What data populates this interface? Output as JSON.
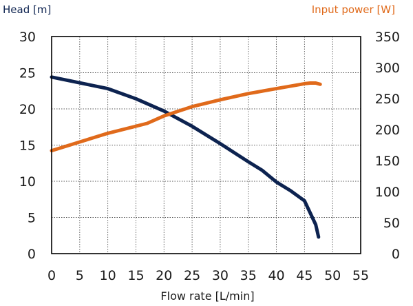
{
  "chart_data": {
    "type": "line",
    "xlabel": "Flow rate [L/min]",
    "left_axis": {
      "label": "Head [m]",
      "color": "#0d2350",
      "ylim": [
        0,
        30
      ],
      "ticks": [
        0,
        5,
        10,
        15,
        20,
        25,
        30
      ]
    },
    "right_axis": {
      "label": "Input power [W]",
      "color": "#e06a1b",
      "ylim": [
        0,
        350
      ],
      "ticks": [
        0,
        50,
        100,
        150,
        200,
        250,
        300,
        350
      ]
    },
    "xlim": [
      0,
      55
    ],
    "xticks": [
      0,
      5,
      10,
      15,
      20,
      25,
      30,
      35,
      40,
      45,
      50,
      55
    ],
    "grid": true,
    "series": [
      {
        "axis": "left",
        "color": "#0d2350",
        "x": [
          0,
          5,
          10,
          15,
          20,
          25,
          30,
          35,
          37.5,
          40,
          42.5,
          45,
          47,
          47.5
        ],
        "y": [
          24.4,
          23.6,
          22.8,
          21.4,
          19.7,
          17.6,
          15.2,
          12.7,
          11.5,
          9.9,
          8.7,
          7.3,
          4.0,
          2.3
        ]
      },
      {
        "axis": "right",
        "color": "#e06a1b",
        "x": [
          0,
          5,
          10,
          17,
          20,
          25,
          30,
          35,
          40,
          45,
          46,
          47,
          47.8
        ],
        "y": [
          166,
          180,
          194,
          210,
          222,
          237,
          248,
          258,
          266,
          274,
          275,
          275,
          273
        ]
      }
    ]
  }
}
